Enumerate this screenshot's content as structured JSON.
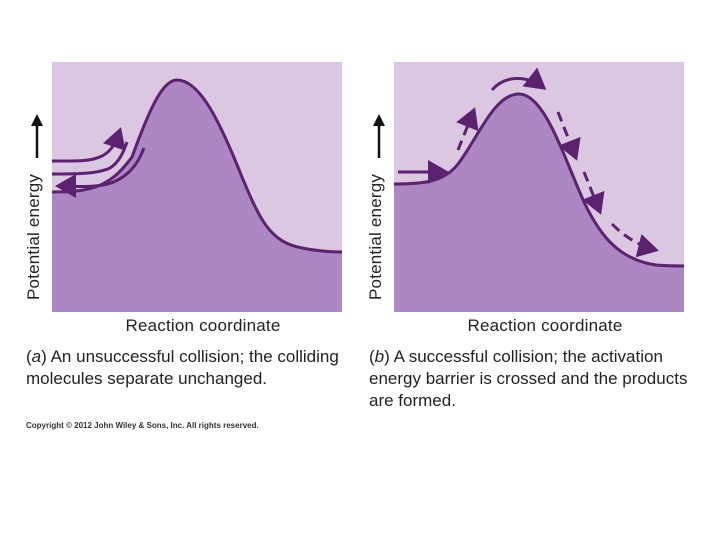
{
  "colors": {
    "background_region": "#dcc7e2",
    "filled_region": "#ac87c3",
    "curve": "#5b2270",
    "text": "#222222"
  },
  "panel_a": {
    "y_axis_label": "Potential energy",
    "x_axis_label": "Reaction coordinate",
    "caption_letter": "a",
    "caption_text": " An unsuccessful collision; the colliding molecules separate unchanged.",
    "arrows": [
      "approach-arrow-up",
      "return-arrow-left"
    ]
  },
  "panel_b": {
    "y_axis_label": "Potential energy",
    "x_axis_label": "Reaction coordinate",
    "caption_letter": "b",
    "caption_text": " A successful collision; the activation energy barrier is crossed and the products are formed.",
    "arrows": [
      "approach-arrow",
      "dashed-climb-arrow",
      "over-barrier-arrow",
      "descent-arrow",
      "product-arrow"
    ]
  },
  "copyright": "Copyright © 2012 John Wiley & Sons, Inc. All rights reserved."
}
